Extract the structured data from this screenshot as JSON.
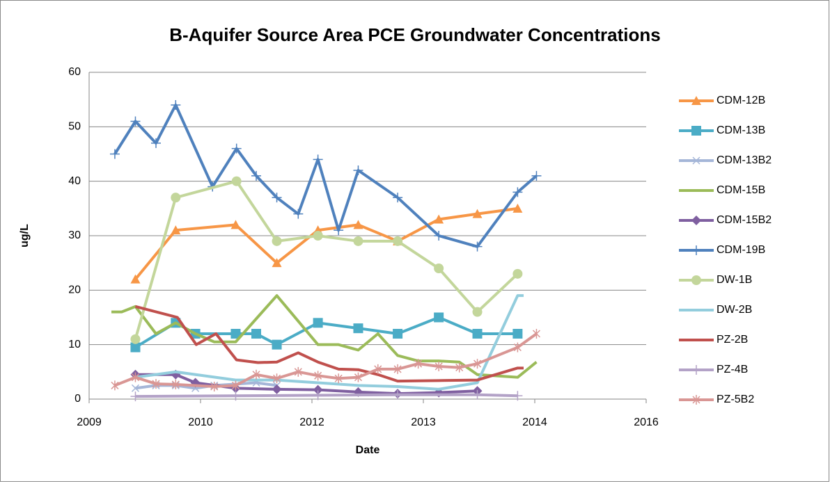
{
  "chart_data": {
    "type": "line",
    "title": "B-Aquifer Source Area PCE Groundwater Concentrations",
    "x_label": "Date",
    "y_label": "ug/L",
    "xlim": [
      2009.5,
      2016.0
    ],
    "xticks": [
      {
        "value": 2009.5,
        "label": "2009"
      },
      {
        "value": 2010.8,
        "label": "2010"
      },
      {
        "value": 2012.1,
        "label": "2012"
      },
      {
        "value": 2013.4,
        "label": "2013"
      },
      {
        "value": 2014.7,
        "label": "2014"
      },
      {
        "value": 2016.0,
        "label": "2016"
      }
    ],
    "ylim": [
      0,
      60
    ],
    "yticks": [
      0,
      10,
      20,
      30,
      40,
      50,
      60
    ],
    "grid": true,
    "legend": "right",
    "series": [
      {
        "name": "CDM-12B",
        "color": "#f79646",
        "marker": "triangle",
        "x": [
          2010.04,
          2010.51,
          2011.21,
          2011.69,
          2012.17,
          2012.64,
          2013.1,
          2013.58,
          2014.03,
          2014.5
        ],
        "values": [
          22,
          31,
          32,
          25,
          31,
          32,
          29,
          33,
          34,
          35
        ]
      },
      {
        "name": "CDM-13B",
        "color": "#4bacc6",
        "marker": "square",
        "x": [
          2010.04,
          2010.51,
          2010.74,
          2011.21,
          2011.45,
          2011.69,
          2012.17,
          2012.64,
          2013.1,
          2013.58,
          2014.03,
          2014.5
        ],
        "values": [
          9.5,
          14,
          12,
          12,
          12,
          10,
          14,
          13,
          12,
          15,
          12,
          12
        ]
      },
      {
        "name": "CDM-13B2",
        "color": "#a5b6d8",
        "marker": "x",
        "x": [
          2010.04,
          2010.28,
          2010.51,
          2010.74,
          2010.96,
          2011.45,
          2011.69
        ],
        "values": [
          2,
          2.5,
          2.5,
          2,
          2.5,
          3,
          2.5
        ]
      },
      {
        "name": "CDM-15B",
        "color": "#9bbb59",
        "marker": "none",
        "x": [
          2009.76,
          2009.88,
          2010.04,
          2010.28,
          2010.51,
          2010.74,
          2010.96,
          2011.21,
          2011.69,
          2012.17,
          2012.41,
          2012.64,
          2012.87,
          2013.1,
          2013.34,
          2013.58,
          2013.82,
          2014.03,
          2014.5,
          2014.72
        ],
        "values": [
          16,
          16,
          17,
          12,
          14,
          12,
          10.5,
          10.5,
          19,
          10,
          10,
          9,
          12,
          8,
          7,
          7,
          6.8,
          4.5,
          4,
          6.8
        ]
      },
      {
        "name": "CDM-15B2",
        "color": "#7f5fa0",
        "marker": "diamond",
        "x": [
          2010.04,
          2010.51,
          2010.74,
          2011.21,
          2011.69,
          2012.17,
          2012.64,
          2013.1,
          2013.58,
          2014.03
        ],
        "values": [
          4.5,
          4.5,
          3,
          2,
          1.8,
          1.7,
          1.3,
          1,
          1.2,
          1.5
        ]
      },
      {
        "name": "CDM-19B",
        "color": "#4f81bd",
        "marker": "plus",
        "x": [
          2009.8,
          2010.04,
          2010.28,
          2010.51,
          2010.94,
          2011.22,
          2011.45,
          2011.69,
          2011.94,
          2012.17,
          2012.41,
          2012.64,
          2013.1,
          2013.58,
          2014.03,
          2014.5,
          2014.72
        ],
        "values": [
          45,
          51,
          47,
          54,
          39,
          46,
          41,
          37,
          34,
          44,
          31,
          42,
          37,
          30,
          28,
          38,
          41
        ]
      },
      {
        "name": "DW-1B",
        "color": "#c3d69b",
        "marker": "circle",
        "x": [
          2010.04,
          2010.51,
          2011.22,
          2011.69,
          2012.17,
          2012.64,
          2013.1,
          2013.58,
          2014.03,
          2014.5
        ],
        "values": [
          11,
          37,
          40,
          29,
          30,
          29,
          29,
          24,
          16,
          23
        ]
      },
      {
        "name": "DW-2B",
        "color": "#93cddd",
        "marker": "none",
        "x": [
          2010.04,
          2010.51,
          2011.21,
          2011.69,
          2012.17,
          2012.64,
          2013.1,
          2013.58,
          2014.03,
          2014.5,
          2014.57
        ],
        "values": [
          4,
          5,
          3.5,
          3.5,
          3,
          2.5,
          2.3,
          1.8,
          3,
          19,
          19
        ]
      },
      {
        "name": "PZ-2B",
        "color": "#c0504d",
        "marker": "none",
        "x": [
          2010.04,
          2010.53,
          2010.75,
          2010.98,
          2011.22,
          2011.47,
          2011.69,
          2011.94,
          2012.17,
          2012.41,
          2012.64,
          2012.87,
          2013.1,
          2013.58,
          2014.03,
          2014.5,
          2014.57
        ],
        "values": [
          17,
          15,
          10,
          12,
          7.2,
          6.7,
          6.8,
          8.5,
          6.8,
          5.5,
          5.4,
          4.5,
          3.3,
          3.4,
          3.5,
          5.7,
          5.7
        ]
      },
      {
        "name": "PZ-4B",
        "color": "#b3a2c7",
        "marker": "plus",
        "x": [
          2010.04,
          2011.21,
          2012.17,
          2013.1,
          2014.03,
          2014.5
        ],
        "values": [
          0.5,
          0.6,
          0.7,
          0.8,
          0.8,
          0.6
        ]
      },
      {
        "name": "PZ-5B2",
        "color": "#d99694",
        "marker": "asterisk",
        "x": [
          2009.8,
          2010.04,
          2010.28,
          2010.51,
          2010.96,
          2011.21,
          2011.45,
          2011.69,
          2011.94,
          2012.17,
          2012.41,
          2012.64,
          2012.87,
          2013.1,
          2013.34,
          2013.58,
          2013.82,
          2014.03,
          2014.5,
          2014.72
        ],
        "values": [
          2.5,
          4,
          2.8,
          2.7,
          2.3,
          2.5,
          4.5,
          3.8,
          5,
          4.3,
          3.8,
          4,
          5.5,
          5.5,
          6.5,
          6,
          5.8,
          6.5,
          9.5,
          12
        ]
      }
    ]
  }
}
